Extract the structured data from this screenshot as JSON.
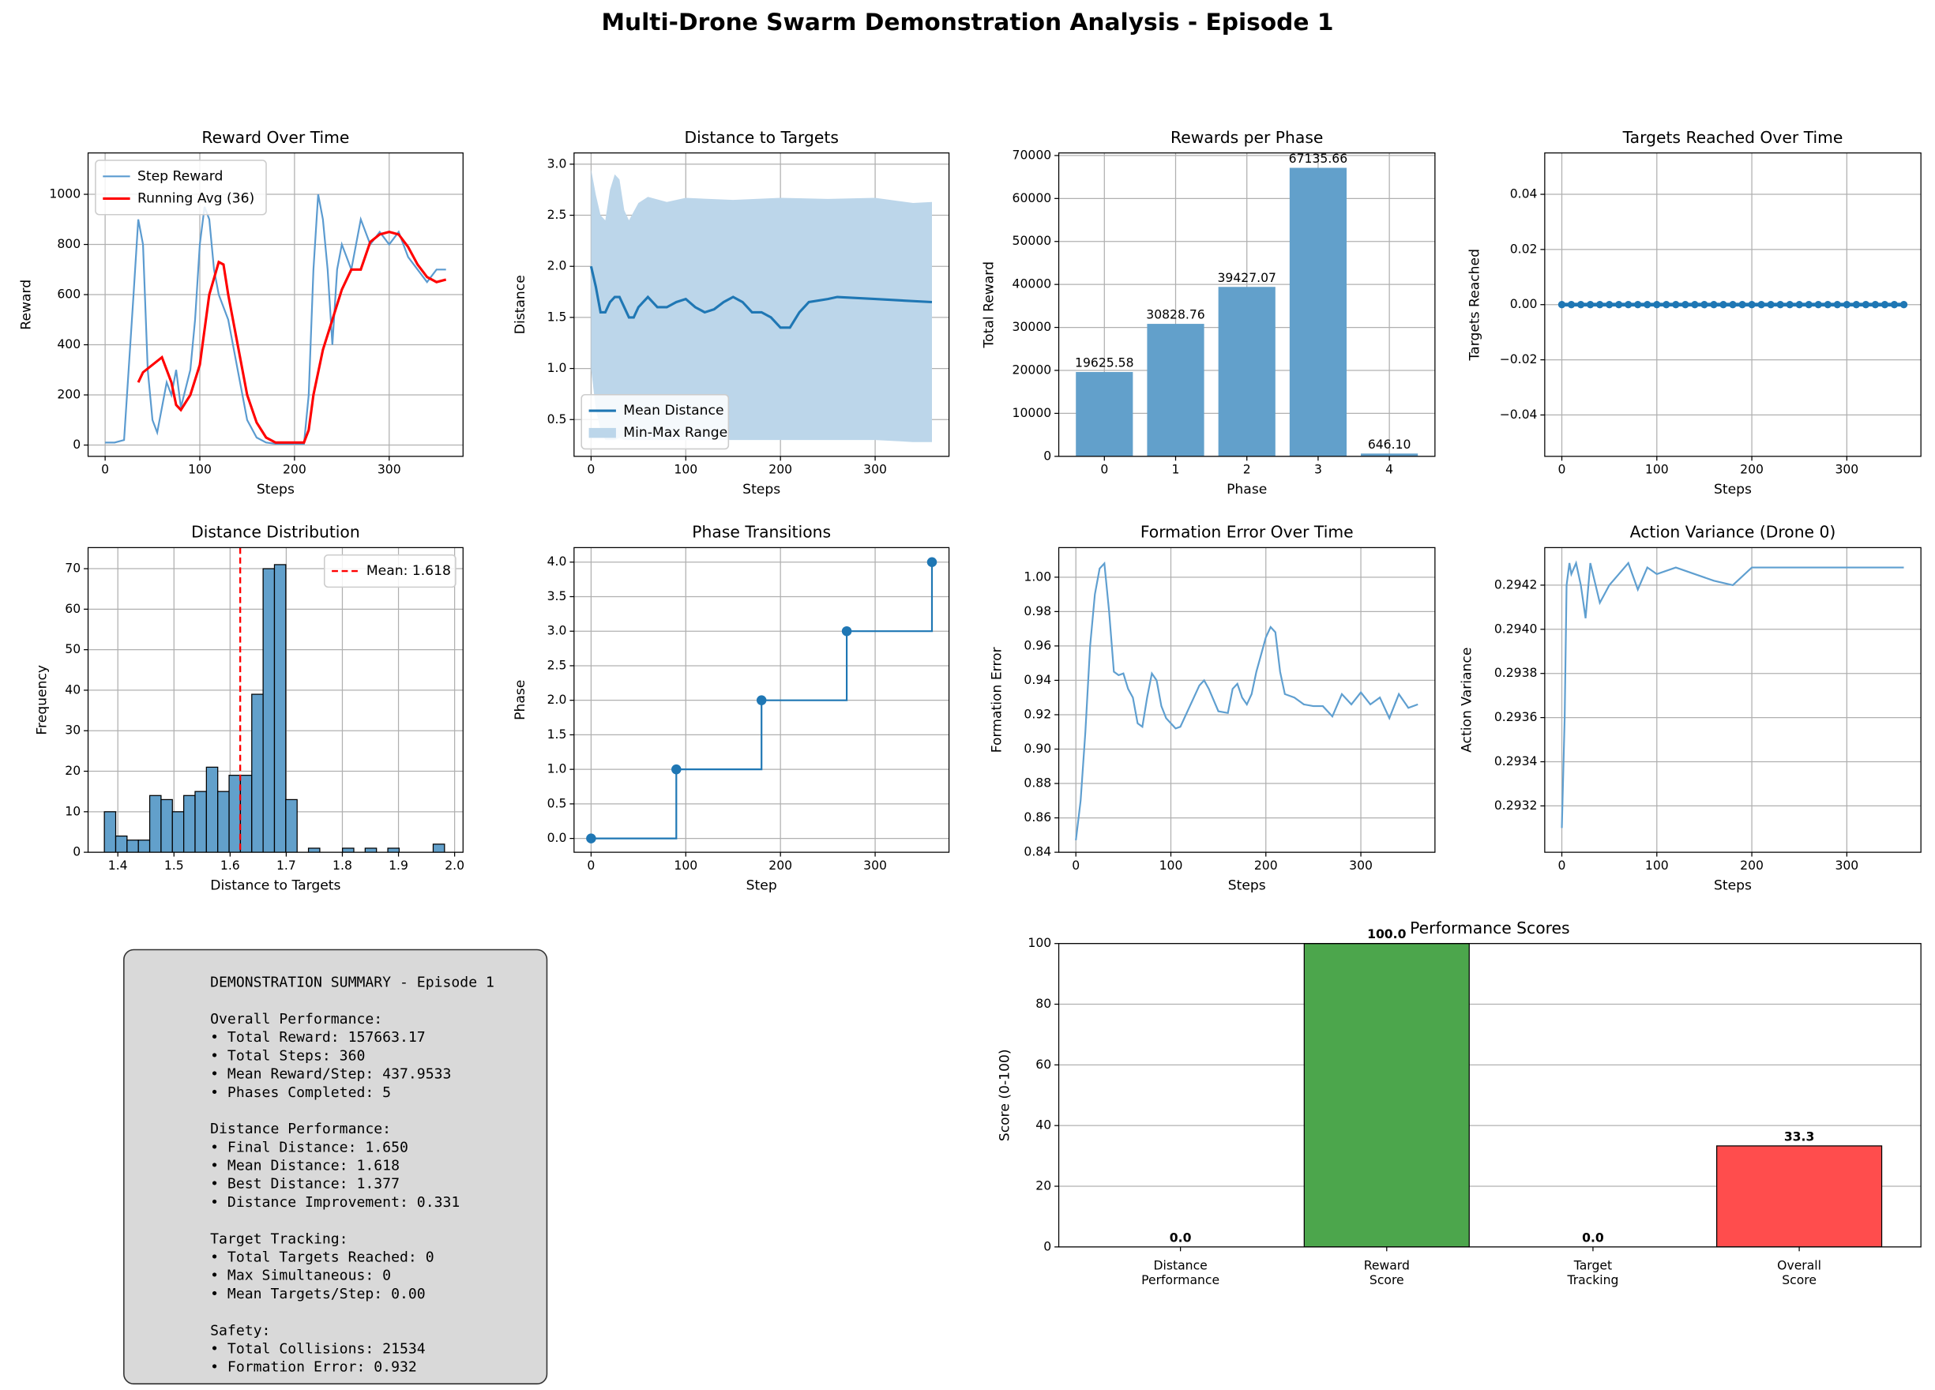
{
  "title": "Multi-Drone Swarm Demonstration Analysis - Episode 1",
  "chart_data": [
    {
      "type": "line",
      "title": "Reward Over Time",
      "xlabel": "Steps",
      "ylabel": "Reward",
      "xlim": [
        -18,
        378
      ],
      "ylim": [
        -45,
        1165
      ],
      "xticks": [
        0,
        100,
        200,
        300
      ],
      "yticks": [
        0,
        200,
        400,
        600,
        800,
        1000
      ],
      "grid": true,
      "legend": "upper left",
      "series": [
        {
          "name": "Step Reward",
          "color": "#5b9bd0",
          "x": [
            0,
            10,
            20,
            30,
            35,
            40,
            45,
            50,
            55,
            60,
            65,
            70,
            75,
            80,
            90,
            95,
            100,
            105,
            110,
            115,
            120,
            130,
            140,
            150,
            160,
            170,
            180,
            190,
            200,
            210,
            215,
            220,
            225,
            230,
            235,
            240,
            245,
            250,
            260,
            270,
            280,
            290,
            300,
            310,
            320,
            330,
            340,
            350,
            360
          ],
          "values": [
            10,
            10,
            20,
            600,
            900,
            800,
            300,
            100,
            50,
            150,
            250,
            200,
            300,
            150,
            300,
            500,
            800,
            950,
            900,
            700,
            600,
            500,
            300,
            100,
            30,
            10,
            5,
            5,
            5,
            5,
            200,
            700,
            1000,
            900,
            700,
            400,
            700,
            800,
            700,
            900,
            800,
            850,
            800,
            850,
            750,
            700,
            650,
            700,
            700
          ]
        },
        {
          "name": "Running Avg (36)",
          "color": "#ff0000",
          "width": 2,
          "x": [
            35,
            40,
            50,
            60,
            70,
            75,
            80,
            90,
            100,
            110,
            120,
            125,
            130,
            140,
            150,
            160,
            170,
            180,
            200,
            210,
            215,
            220,
            230,
            240,
            250,
            260,
            270,
            280,
            290,
            300,
            310,
            320,
            330,
            340,
            350,
            360
          ],
          "values": [
            250,
            290,
            320,
            350,
            250,
            160,
            140,
            200,
            320,
            600,
            730,
            720,
            600,
            400,
            200,
            90,
            30,
            10,
            10,
            10,
            60,
            200,
            380,
            500,
            620,
            700,
            700,
            810,
            840,
            850,
            840,
            790,
            720,
            670,
            650,
            660
          ]
        }
      ]
    },
    {
      "type": "line",
      "title": "Distance to Targets",
      "xlabel": "Steps",
      "ylabel": "Distance",
      "xlim": [
        -18,
        378
      ],
      "ylim": [
        0.14,
        3.11
      ],
      "xticks": [
        0,
        100,
        200,
        300
      ],
      "yticks": [
        0.5,
        {
          "value": 1,
          "label": "1.0"
        },
        1.5,
        {
          "value": 2,
          "label": "2.0"
        },
        2.5,
        {
          "value": 3,
          "label": "3.0"
        }
      ],
      "grid": true,
      "legend": "lower left",
      "series": [
        {
          "name": "Mean Distance",
          "color": "#1f77b4",
          "width": 2,
          "x": [
            0,
            5,
            10,
            15,
            20,
            25,
            30,
            35,
            40,
            45,
            50,
            55,
            60,
            70,
            80,
            90,
            100,
            110,
            120,
            130,
            140,
            150,
            160,
            170,
            180,
            190,
            200,
            210,
            220,
            230,
            250,
            260,
            300,
            360
          ],
          "values": [
            2.0,
            1.8,
            1.55,
            1.55,
            1.65,
            1.7,
            1.7,
            1.6,
            1.5,
            1.5,
            1.6,
            1.65,
            1.7,
            1.6,
            1.6,
            1.65,
            1.68,
            1.6,
            1.55,
            1.58,
            1.65,
            1.7,
            1.65,
            1.55,
            1.55,
            1.5,
            1.4,
            1.4,
            1.55,
            1.65,
            1.68,
            1.7,
            1.68,
            1.65
          ]
        },
        {
          "name": "Min-Max Range",
          "color": "#bcd6ea",
          "x": [
            0,
            5,
            10,
            15,
            20,
            25,
            30,
            35,
            40,
            50,
            60,
            80,
            100,
            150,
            200,
            250,
            300,
            340,
            360
          ],
          "lower": [
            1.0,
            0.6,
            0.4,
            0.3,
            0.3,
            0.3,
            0.32,
            0.3,
            0.3,
            0.3,
            0.3,
            0.3,
            0.3,
            0.3,
            0.3,
            0.3,
            0.3,
            0.28,
            0.28
          ],
          "upper": [
            2.95,
            2.7,
            2.5,
            2.45,
            2.75,
            2.9,
            2.85,
            2.55,
            2.45,
            2.62,
            2.68,
            2.63,
            2.67,
            2.65,
            2.67,
            2.66,
            2.67,
            2.62,
            2.63
          ]
        }
      ]
    },
    {
      "type": "bar",
      "title": "Rewards per Phase",
      "xlabel": "Phase",
      "ylabel": "Total Reward",
      "categories": [
        "0",
        "1",
        "2",
        "3",
        "4"
      ],
      "values": [
        19625.58,
        30828.76,
        39427.07,
        67135.66,
        646.1
      ],
      "value_labels": [
        "19625.58",
        "30828.76",
        "39427.07",
        "67135.66",
        "646.10"
      ],
      "color": "#62a0cb",
      "ylim": [
        0,
        70600
      ],
      "yticks": [
        0,
        10000,
        20000,
        30000,
        40000,
        50000,
        60000,
        70000
      ],
      "grid": true
    },
    {
      "type": "line",
      "title": "Targets Reached Over Time",
      "xlabel": "Steps",
      "ylabel": "Targets Reached",
      "xlim": [
        -18,
        378
      ],
      "ylim": [
        -0.055,
        0.055
      ],
      "xticks": [
        0,
        100,
        200,
        300
      ],
      "yticks": [
        {
          "value": -0.04,
          "label": "−0.04"
        },
        {
          "value": -0.02,
          "label": "−0.02"
        },
        {
          "value": 0,
          "label": "0.00"
        },
        0.02,
        0.04
      ],
      "grid": true,
      "marker": true,
      "series": [
        {
          "color": "#1f77b4",
          "width": 3,
          "x": [
            0,
            10,
            20,
            30,
            40,
            50,
            60,
            70,
            80,
            90,
            100,
            110,
            120,
            130,
            140,
            150,
            160,
            170,
            180,
            190,
            200,
            210,
            220,
            230,
            240,
            250,
            260,
            270,
            280,
            290,
            300,
            310,
            320,
            330,
            340,
            350,
            360
          ],
          "values": [
            0,
            0,
            0,
            0,
            0,
            0,
            0,
            0,
            0,
            0,
            0,
            0,
            0,
            0,
            0,
            0,
            0,
            0,
            0,
            0,
            0,
            0,
            0,
            0,
            0,
            0,
            0,
            0,
            0,
            0,
            0,
            0,
            0,
            0,
            0,
            0,
            0
          ]
        }
      ]
    },
    {
      "type": "histogram",
      "title": "Distance Distribution",
      "xlabel": "Distance to Targets",
      "ylabel": "Frequency",
      "xlim": [
        1.347,
        2.015
      ],
      "ylim": [
        0,
        75.2
      ],
      "xticks": [
        1.4,
        1.5,
        1.6,
        1.7,
        1.8,
        1.9,
        {
          "value": 2,
          "label": "2.0"
        }
      ],
      "yticks": [
        0,
        10,
        20,
        30,
        40,
        50,
        60,
        70
      ],
      "grid": true,
      "legend": "upper right",
      "color": "#62a0cb",
      "bins": [
        1.376,
        1.3962,
        1.4164,
        1.4366,
        1.4568,
        1.477,
        1.4972,
        1.5174,
        1.5376,
        1.5578,
        1.578,
        1.5982,
        1.6184,
        1.6386,
        1.6588,
        1.679,
        1.6992,
        1.7194,
        1.7396,
        1.7598,
        1.78,
        1.8002,
        1.8204,
        1.8406,
        1.8608,
        1.881,
        1.9012,
        1.9214,
        1.9416,
        1.9618,
        1.982
      ],
      "counts": [
        10,
        4,
        3,
        3,
        14,
        13,
        10,
        14,
        15,
        21,
        15,
        19,
        19,
        39,
        70,
        71,
        13,
        0,
        1,
        0,
        0,
        1,
        0,
        1,
        0,
        1,
        0,
        0,
        0,
        2
      ],
      "mean_line": {
        "value": 1.618,
        "label": "Mean: 1.618",
        "color": "#ff0000"
      }
    },
    {
      "type": "step",
      "title": "Phase Transitions",
      "xlabel": "Step",
      "ylabel": "Phase",
      "xlim": [
        -18,
        378
      ],
      "ylim": [
        -0.2,
        4.21
      ],
      "xticks": [
        0,
        100,
        200,
        300
      ],
      "yticks": [
        {
          "value": 0,
          "label": "0.0"
        },
        0.5,
        {
          "value": 1,
          "label": "1.0"
        },
        1.5,
        {
          "value": 2,
          "label": "2.0"
        },
        2.5,
        {
          "value": 3,
          "label": "3.0"
        },
        3.5,
        {
          "value": 4,
          "label": "4.0"
        }
      ],
      "grid": true,
      "marker": true,
      "series": [
        {
          "color": "#1f77b4",
          "x": [
            0,
            90,
            180,
            270,
            360
          ],
          "values": [
            0,
            1,
            2,
            3,
            4
          ]
        }
      ]
    },
    {
      "type": "line",
      "title": "Formation Error Over Time",
      "xlabel": "Steps",
      "ylabel": "Formation Error",
      "xlim": [
        -18,
        378
      ],
      "ylim": [
        0.84,
        1.0172
      ],
      "xticks": [
        0,
        100,
        200,
        300
      ],
      "yticks": [
        0.84,
        0.86,
        0.88,
        {
          "value": 0.9,
          "label": "0.90"
        },
        0.92,
        0.94,
        0.96,
        0.98,
        {
          "value": 1,
          "label": "1.00"
        }
      ],
      "grid": true,
      "series": [
        {
          "color": "#5f9fd0",
          "x": [
            0,
            5,
            10,
            15,
            20,
            25,
            30,
            35,
            40,
            45,
            50,
            55,
            60,
            65,
            70,
            75,
            80,
            85,
            90,
            95,
            100,
            105,
            110,
            120,
            130,
            135,
            140,
            150,
            160,
            165,
            170,
            175,
            180,
            185,
            190,
            195,
            200,
            205,
            210,
            215,
            220,
            230,
            240,
            250,
            260,
            270,
            280,
            290,
            300,
            310,
            320,
            330,
            340,
            350,
            360
          ],
          "values": [
            0.847,
            0.87,
            0.91,
            0.96,
            0.99,
            1.005,
            1.008,
            0.98,
            0.945,
            0.943,
            0.944,
            0.935,
            0.93,
            0.915,
            0.913,
            0.93,
            0.944,
            0.94,
            0.925,
            0.918,
            0.915,
            0.912,
            0.913,
            0.925,
            0.937,
            0.94,
            0.935,
            0.922,
            0.921,
            0.935,
            0.938,
            0.93,
            0.926,
            0.932,
            0.945,
            0.955,
            0.965,
            0.971,
            0.968,
            0.945,
            0.932,
            0.93,
            0.926,
            0.925,
            0.925,
            0.919,
            0.932,
            0.926,
            0.933,
            0.926,
            0.93,
            0.918,
            0.932,
            0.924,
            0.926
          ]
        }
      ]
    },
    {
      "type": "line",
      "title": "Action Variance (Drone 0)",
      "xlabel": "Steps",
      "ylabel": "Action Variance",
      "xlim": [
        -18,
        378
      ],
      "ylim": [
        0.29299,
        0.29437
      ],
      "xticks": [
        0,
        100,
        200,
        300
      ],
      "yticks": [
        0.2932,
        0.2934,
        0.2936,
        0.2938,
        {
          "value": 0.294,
          "label": "0.2940"
        },
        0.2942
      ],
      "grid": true,
      "series": [
        {
          "color": "#5f9fd0",
          "x": [
            0,
            3,
            5,
            8,
            10,
            15,
            20,
            25,
            30,
            40,
            50,
            60,
            70,
            80,
            90,
            100,
            120,
            140,
            160,
            180,
            200,
            220,
            250,
            300,
            360
          ],
          "values": [
            0.2931,
            0.2936,
            0.2942,
            0.2943,
            0.29425,
            0.2943,
            0.2942,
            0.29405,
            0.2943,
            0.29412,
            0.2942,
            0.29425,
            0.2943,
            0.29418,
            0.29428,
            0.29425,
            0.29428,
            0.29425,
            0.29422,
            0.2942,
            0.29428,
            0.29428,
            0.29428,
            0.29428,
            0.29428
          ]
        }
      ]
    },
    {
      "type": "bar",
      "title": "Performance Scores",
      "ylabel": "Score (0-100)",
      "categories": [
        "Distance\nPerformance",
        "Reward\nScore",
        "Target\nTracking",
        "Overall\nScore"
      ],
      "values": [
        0,
        100,
        0,
        33.3
      ],
      "value_labels": [
        "0.0",
        "100.0",
        "0.0",
        "33.3"
      ],
      "colors": [
        "#ff4d4d",
        "#4ca64c",
        "#ff4d4d",
        "#ff4d4d"
      ],
      "ylim": [
        0,
        100
      ],
      "yticks": [
        0,
        20,
        40,
        60,
        80,
        100
      ],
      "grid": "y",
      "bold_labels": true
    }
  ],
  "summary": {
    "title": "DEMONSTRATION SUMMARY - Episode 1",
    "sections": [
      {
        "heading": "Overall Performance:",
        "items": [
          "• Total Reward: 157663.17",
          "• Total Steps: 360",
          "• Mean Reward/Step: 437.9533",
          "• Phases Completed: 5"
        ]
      },
      {
        "heading": "Distance Performance:",
        "items": [
          "• Final Distance: 1.650",
          "• Mean Distance: 1.618",
          "• Best Distance: 1.377",
          "• Distance Improvement: 0.331"
        ]
      },
      {
        "heading": "Target Tracking:",
        "items": [
          "• Total Targets Reached: 0",
          "• Max Simultaneous: 0",
          "• Mean Targets/Step: 0.00"
        ]
      },
      {
        "heading": "Safety:",
        "items": [
          "• Total Collisions: 21534",
          "• Formation Error: 0.932"
        ]
      }
    ]
  }
}
